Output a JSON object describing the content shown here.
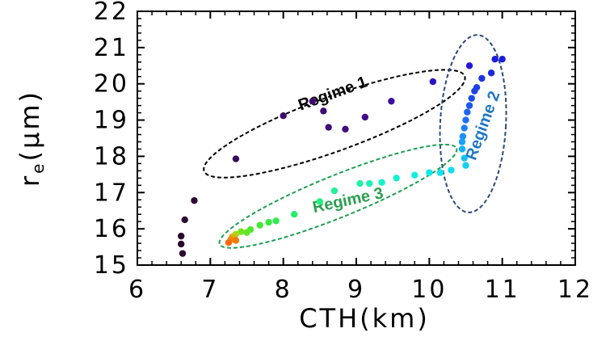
{
  "chart_data": {
    "type": "scatter",
    "title": "",
    "xlabel": "CTH(km)",
    "ylabel": "r",
    "ylabel_sub": "e",
    "ylabel_unit": "(μm)",
    "xlim": [
      6,
      12
    ],
    "ylim": [
      15,
      22
    ],
    "xticks": [
      "6",
      "7",
      "8",
      "9",
      "10",
      "11",
      "12"
    ],
    "yticks": [
      "15",
      "16",
      "17",
      "18",
      "19",
      "20",
      "21",
      "22"
    ],
    "grid": false,
    "points": [
      {
        "x": 6.62,
        "y": 15.32,
        "color": "#2a0a2a"
      },
      {
        "x": 6.6,
        "y": 15.58,
        "color": "#2a0a2a"
      },
      {
        "x": 6.6,
        "y": 15.8,
        "color": "#2a0a2a"
      },
      {
        "x": 6.65,
        "y": 16.25,
        "color": "#2a0a2a"
      },
      {
        "x": 6.78,
        "y": 16.78,
        "color": "#2e0838"
      },
      {
        "x": 7.35,
        "y": 17.93,
        "color": "#38085a"
      },
      {
        "x": 8.0,
        "y": 19.12,
        "color": "#3d0868"
      },
      {
        "x": 8.4,
        "y": 19.52,
        "color": "#3f0a72"
      },
      {
        "x": 8.55,
        "y": 19.25,
        "color": "#3f0a72"
      },
      {
        "x": 8.62,
        "y": 18.8,
        "color": "#400a78"
      },
      {
        "x": 8.85,
        "y": 18.75,
        "color": "#420a80"
      },
      {
        "x": 9.12,
        "y": 19.08,
        "color": "#440c8c"
      },
      {
        "x": 9.48,
        "y": 19.52,
        "color": "#3a10a0"
      },
      {
        "x": 10.05,
        "y": 20.06,
        "color": "#2c12c0"
      },
      {
        "x": 10.55,
        "y": 20.5,
        "color": "#2418d8"
      },
      {
        "x": 10.9,
        "y": 20.68,
        "color": "#1c1cdc"
      },
      {
        "x": 11.0,
        "y": 20.68,
        "color": "#1c1cdc"
      },
      {
        "x": 10.85,
        "y": 20.3,
        "color": "#1c28e0"
      },
      {
        "x": 10.72,
        "y": 20.15,
        "color": "#1c34e4"
      },
      {
        "x": 10.65,
        "y": 19.9,
        "color": "#1c40e8"
      },
      {
        "x": 10.62,
        "y": 19.8,
        "color": "#1c44ea"
      },
      {
        "x": 10.58,
        "y": 19.6,
        "color": "#1c4cec"
      },
      {
        "x": 10.55,
        "y": 19.4,
        "color": "#1c58f0"
      },
      {
        "x": 10.52,
        "y": 19.22,
        "color": "#1c64f2"
      },
      {
        "x": 10.5,
        "y": 19.0,
        "color": "#1c70f4"
      },
      {
        "x": 10.48,
        "y": 18.78,
        "color": "#1a80f6"
      },
      {
        "x": 10.46,
        "y": 18.55,
        "color": "#1890f8"
      },
      {
        "x": 10.45,
        "y": 18.4,
        "color": "#16a0f8"
      },
      {
        "x": 10.45,
        "y": 18.2,
        "color": "#14b0f8"
      },
      {
        "x": 10.48,
        "y": 17.95,
        "color": "#12c0f8"
      },
      {
        "x": 10.5,
        "y": 17.75,
        "color": "#10d0f6"
      },
      {
        "x": 10.3,
        "y": 17.62,
        "color": "#10dcf2"
      },
      {
        "x": 10.15,
        "y": 17.55,
        "color": "#10e4ee"
      },
      {
        "x": 10.0,
        "y": 17.55,
        "color": "#10e8ea"
      },
      {
        "x": 9.8,
        "y": 17.48,
        "color": "#12eee0"
      },
      {
        "x": 9.55,
        "y": 17.4,
        "color": "#14f0d6"
      },
      {
        "x": 9.35,
        "y": 17.28,
        "color": "#16f2c8"
      },
      {
        "x": 9.18,
        "y": 17.25,
        "color": "#18f2b8"
      },
      {
        "x": 9.05,
        "y": 17.25,
        "color": "#1cf2a8"
      },
      {
        "x": 8.7,
        "y": 17.05,
        "color": "#20f296"
      },
      {
        "x": 8.5,
        "y": 16.75,
        "color": "#24f080"
      },
      {
        "x": 8.15,
        "y": 16.4,
        "color": "#28ee66"
      },
      {
        "x": 7.9,
        "y": 16.22,
        "color": "#30ec50"
      },
      {
        "x": 7.8,
        "y": 16.18,
        "color": "#38ea40"
      },
      {
        "x": 7.68,
        "y": 16.1,
        "color": "#40e838"
      },
      {
        "x": 7.55,
        "y": 15.98,
        "color": "#4ee62c"
      },
      {
        "x": 7.5,
        "y": 15.9,
        "color": "#5ee626"
      },
      {
        "x": 7.42,
        "y": 15.92,
        "color": "#70e420"
      },
      {
        "x": 7.35,
        "y": 15.85,
        "color": "#a8d818"
      },
      {
        "x": 7.3,
        "y": 15.78,
        "color": "#e0b010"
      },
      {
        "x": 7.28,
        "y": 15.7,
        "color": "#f08a0c"
      },
      {
        "x": 7.35,
        "y": 15.68,
        "color": "#f47a0a"
      },
      {
        "x": 7.25,
        "y": 15.62,
        "color": "#f86a08"
      }
    ],
    "annotations": [
      {
        "label": "Regime 1",
        "color": "#000000",
        "cx": 8.7,
        "cy": 18.9,
        "rx": 1.9,
        "ry": 0.75,
        "angle": -20,
        "tx": 8.7,
        "ty": 19.6,
        "rot": -20
      },
      {
        "label": "Regime 2",
        "color": "#2a4a7a",
        "cx": 10.6,
        "cy": 18.9,
        "rx": 0.45,
        "ry": 2.45,
        "angle": 3,
        "tx": 10.8,
        "ty": 18.8,
        "rot": -70,
        "text_color": "#1f78c8"
      },
      {
        "label": "Regime 3",
        "color": "#1aa050",
        "cx": 8.75,
        "cy": 16.9,
        "rx": 1.75,
        "ry": 0.58,
        "angle": -22,
        "tx": 8.9,
        "ty": 16.65,
        "rot": -12,
        "text_color": "#2aa050"
      }
    ]
  }
}
